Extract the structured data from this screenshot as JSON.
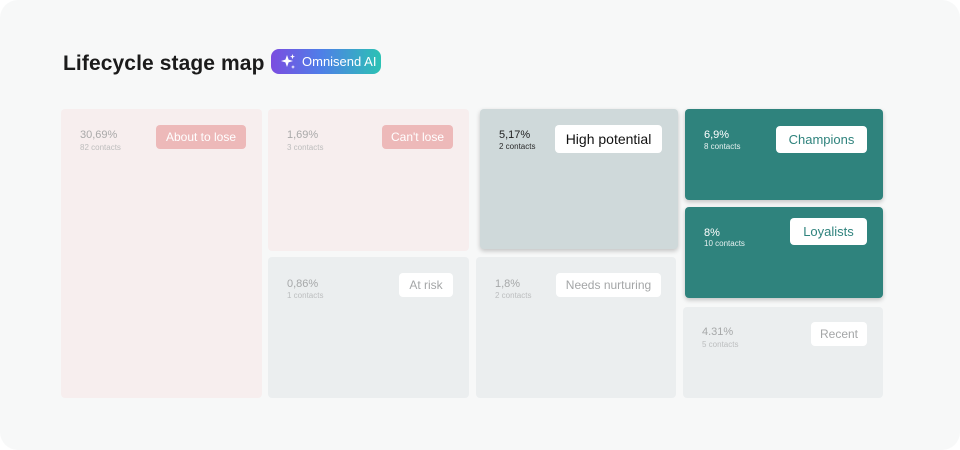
{
  "header": {
    "title": "Lifecycle stage map",
    "ai_badge": "Omnisend AI",
    "ai_icon": "sparkle-icon"
  },
  "stages": {
    "about_to_lose": {
      "label": "About to lose",
      "percent": "30,69%",
      "contacts": "82 contacts"
    },
    "cant_lose": {
      "label": "Can't lose",
      "percent": "1,69%",
      "contacts": "3 contacts"
    },
    "at_risk": {
      "label": "At risk",
      "percent": "0,86%",
      "contacts": "1 contacts"
    },
    "high_potential": {
      "label": "High potential",
      "percent": "5,17%",
      "contacts": "2 contacts"
    },
    "needs_nurturing": {
      "label": "Needs nurturing",
      "percent": "1,8%",
      "contacts": "2 contacts"
    },
    "champions": {
      "label": "Champions",
      "percent": "6,9%",
      "contacts": "8 contacts"
    },
    "loyalists": {
      "label": "Loyalists",
      "percent": "8%",
      "contacts": "10 contacts"
    },
    "recent": {
      "label": "Recent",
      "percent": "4.31%",
      "contacts": "5 contacts"
    }
  },
  "colors": {
    "teal": "#2f837d",
    "pink_tile": "#f7eeee",
    "pink_label": "#edb9b9",
    "grey_tile": "#ebeeef",
    "highlight_grey": "#cfd9da"
  }
}
